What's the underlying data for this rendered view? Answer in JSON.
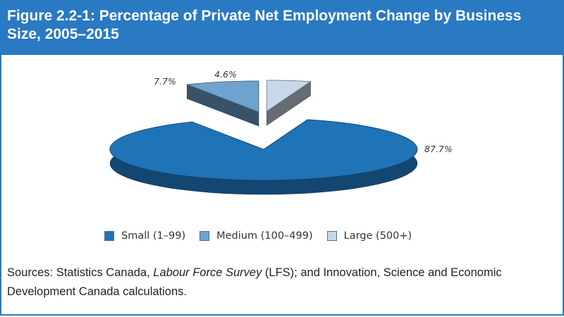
{
  "figure": {
    "title": "Figure 2.2-1: Percentage of Private Net Employment Change by Business Size, 2005–2015"
  },
  "chart_data": {
    "type": "pie",
    "slices": [
      {
        "name": "Small (1–99)",
        "value": 87.7,
        "label": "87.7%",
        "color": "#1f73b7"
      },
      {
        "name": "Medium (100–499)",
        "value": 7.7,
        "label": "7.7%",
        "color": "#6fa3cf"
      },
      {
        "name": "Large (500+)",
        "value": 4.6,
        "label": "4.6%",
        "color": "#c9d8e8"
      }
    ],
    "exploded": [
      "Medium (100–499)",
      "Large (500+)"
    ],
    "style": "3d",
    "legend_position": "bottom"
  },
  "sources": {
    "prefix": "Sources: Statistics Canada, ",
    "survey": "Labour Force Survey",
    "rest": " (LFS); and Innovation, Science and Economic Development Canada calculations."
  }
}
